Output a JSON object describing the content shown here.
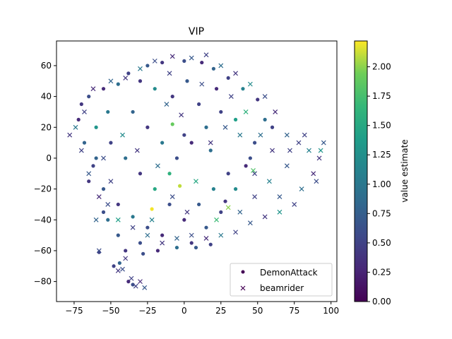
{
  "chart_data": {
    "type": "scatter",
    "title": "VIP",
    "xlabel": "",
    "ylabel": "",
    "xlim": [
      -87,
      104
    ],
    "ylim": [
      -93,
      76
    ],
    "xticks": [
      -75,
      -50,
      -25,
      0,
      25,
      50,
      75,
      100
    ],
    "yticks": [
      -80,
      -60,
      -40,
      -20,
      0,
      20,
      40,
      60
    ],
    "xtick_labels": [
      "−75",
      "−50",
      "−25",
      "0",
      "25",
      "50",
      "75",
      "100"
    ],
    "ytick_labels": [
      "−80",
      "−60",
      "−40",
      "−20",
      "0",
      "20",
      "40",
      "60"
    ],
    "colormap": "viridis",
    "colorbar": {
      "label": "value estimate",
      "min": 0.0,
      "max": 2.22,
      "ticks": [
        0.0,
        0.25,
        0.5,
        0.75,
        1.0,
        1.25,
        1.5,
        1.75,
        2.0
      ],
      "tick_labels": [
        "0.00",
        "0.25",
        "0.50",
        "0.75",
        "1.00",
        "1.25",
        "1.50",
        "1.75",
        "2.00"
      ]
    },
    "legend": {
      "placement": "lower-right",
      "entries": [
        {
          "label": "DemonAttack",
          "marker": "circle"
        },
        {
          "label": "beamrider",
          "marker": "x"
        }
      ]
    },
    "series": [
      {
        "name": "DemonAttack",
        "marker": "circle",
        "points": [
          [
            -70,
            35,
            0.4
          ],
          [
            -65,
            40,
            0.6
          ],
          [
            -55,
            45,
            0.3
          ],
          [
            -45,
            48,
            0.9
          ],
          [
            -38,
            55,
            0.5
          ],
          [
            -25,
            60,
            0.7
          ],
          [
            -15,
            62,
            0.4
          ],
          [
            0,
            63,
            0.6
          ],
          [
            12,
            62,
            0.3
          ],
          [
            20,
            58,
            0.8
          ],
          [
            30,
            52,
            0.5
          ],
          [
            40,
            45,
            1.1
          ],
          [
            50,
            38,
            0.4
          ],
          [
            55,
            25,
            0.9
          ],
          [
            48,
            10,
            0.6
          ],
          [
            42,
            -5,
            0.3
          ],
          [
            35,
            -20,
            1.2
          ],
          [
            25,
            -35,
            0.5
          ],
          [
            15,
            -45,
            0.7
          ],
          [
            5,
            -55,
            0.4
          ],
          [
            -5,
            -58,
            0.9
          ],
          [
            -15,
            -50,
            0.3
          ],
          [
            -25,
            -45,
            0.6
          ],
          [
            -35,
            -38,
            1.0
          ],
          [
            -45,
            -30,
            0.4
          ],
          [
            -55,
            -20,
            0.7
          ],
          [
            -62,
            -5,
            0.5
          ],
          [
            -68,
            10,
            0.8
          ],
          [
            -72,
            25,
            0.3
          ],
          [
            -60,
            20,
            1.3
          ],
          [
            -50,
            10,
            0.5
          ],
          [
            -40,
            0,
            0.9
          ],
          [
            -30,
            -10,
            0.4
          ],
          [
            -20,
            -20,
            1.5
          ],
          [
            -10,
            -30,
            0.6
          ],
          [
            0,
            -40,
            0.3
          ],
          [
            10,
            -30,
            0.7
          ],
          [
            20,
            -20,
            1.1
          ],
          [
            30,
            -10,
            0.5
          ],
          [
            -35,
            30,
            0.8
          ],
          [
            -25,
            20,
            0.4
          ],
          [
            -15,
            10,
            1.0
          ],
          [
            -5,
            0,
            0.6
          ],
          [
            5,
            10,
            0.3
          ],
          [
            15,
            20,
            0.9
          ],
          [
            25,
            30,
            0.5
          ],
          [
            35,
            25,
            1.4
          ],
          [
            -45,
            -50,
            0.7
          ],
          [
            -40,
            -60,
            0.4
          ],
          [
            -30,
            -55,
            0.6
          ],
          [
            -48,
            -70,
            0.5
          ],
          [
            -44,
            -68,
            0.8
          ],
          [
            -38,
            -80,
            0.3
          ],
          [
            -35,
            -82,
            0.6
          ],
          [
            -58,
            -61,
            0.5
          ],
          [
            -52,
            -40,
            0.9
          ],
          [
            -8,
            40,
            0.4
          ],
          [
            2,
            50,
            0.7
          ],
          [
            -20,
            45,
            1.2
          ],
          [
            10,
            35,
            0.5
          ],
          [
            22,
            45,
            0.3
          ],
          [
            -60,
            0,
            0.8
          ],
          [
            -65,
            -15,
            0.4
          ],
          [
            -55,
            -35,
            0.6
          ],
          [
            -10,
            -10,
            1.6
          ],
          [
            0,
            15,
            0.5
          ],
          [
            18,
            5,
            0.9
          ],
          [
            28,
            -28,
            0.4
          ],
          [
            -28,
            -62,
            0.6
          ],
          [
            -18,
            -60,
            0.3
          ],
          [
            8,
            -58,
            0.7
          ],
          [
            18,
            -56,
            0.5
          ],
          [
            -52,
            30,
            1.0
          ],
          [
            -30,
            50,
            0.4
          ],
          [
            45,
            0,
            0.6
          ],
          [
            60,
            20,
            0.5
          ],
          [
            -3,
            -18,
            2.1
          ],
          [
            -22,
            -33,
            2.2
          ],
          [
            -8,
            22,
            1.9
          ]
        ]
      },
      {
        "name": "beamrider",
        "marker": "x",
        "points": [
          [
            -68,
            30,
            0.5
          ],
          [
            -62,
            45,
            0.3
          ],
          [
            -50,
            50,
            0.8
          ],
          [
            -40,
            52,
            0.4
          ],
          [
            -30,
            58,
            1.0
          ],
          [
            -20,
            63,
            0.6
          ],
          [
            -8,
            66,
            0.3
          ],
          [
            5,
            65,
            0.7
          ],
          [
            15,
            67,
            0.5
          ],
          [
            25,
            60,
            0.9
          ],
          [
            35,
            55,
            0.4
          ],
          [
            45,
            48,
            1.2
          ],
          [
            55,
            40,
            0.6
          ],
          [
            62,
            30,
            0.3
          ],
          [
            70,
            15,
            0.8
          ],
          [
            78,
            10,
            0.5
          ],
          [
            85,
            5,
            1.1
          ],
          [
            92,
            0,
            0.4
          ],
          [
            95,
            10,
            0.7
          ],
          [
            88,
            -10,
            0.3
          ],
          [
            80,
            -20,
            0.9
          ],
          [
            75,
            -30,
            0.5
          ],
          [
            65,
            -35,
            1.3
          ],
          [
            55,
            -38,
            0.4
          ],
          [
            45,
            -42,
            0.7
          ],
          [
            35,
            -48,
            0.5
          ],
          [
            25,
            -50,
            1.0
          ],
          [
            15,
            -52,
            0.3
          ],
          [
            5,
            -50,
            0.6
          ],
          [
            -5,
            -52,
            0.8
          ],
          [
            -15,
            -55,
            0.4
          ],
          [
            -25,
            -50,
            0.9
          ],
          [
            -35,
            -45,
            0.5
          ],
          [
            -45,
            -40,
            1.4
          ],
          [
            -52,
            -30,
            0.6
          ],
          [
            -58,
            -25,
            0.3
          ],
          [
            -65,
            -10,
            0.7
          ],
          [
            -70,
            5,
            0.5
          ],
          [
            -74,
            20,
            1.0
          ],
          [
            -78,
            15,
            0.4
          ],
          [
            90,
            -15,
            0.6
          ],
          [
            82,
            15,
            0.5
          ],
          [
            93,
            5,
            1.3
          ],
          [
            70,
            -5,
            0.7
          ],
          [
            60,
            5,
            0.4
          ],
          [
            58,
            -15,
            1.1
          ],
          [
            48,
            -25,
            0.5
          ],
          [
            38,
            -35,
            0.8
          ],
          [
            -45,
            -73,
            0.4
          ],
          [
            -42,
            -72,
            0.6
          ],
          [
            -36,
            -78,
            0.5
          ],
          [
            -30,
            -80,
            0.3
          ],
          [
            -27,
            -84,
            0.7
          ],
          [
            -33,
            -83,
            0.5
          ],
          [
            -40,
            -65,
            0.4
          ],
          [
            -58,
            -60,
            0.6
          ],
          [
            -60,
            -40,
            0.8
          ],
          [
            -50,
            -15,
            0.5
          ],
          [
            -42,
            15,
            1.2
          ],
          [
            -32,
            5,
            0.4
          ],
          [
            -18,
            -5,
            0.9
          ],
          [
            -8,
            -25,
            0.6
          ],
          [
            8,
            -15,
            1.5
          ],
          [
            18,
            10,
            0.4
          ],
          [
            28,
            20,
            0.7
          ],
          [
            38,
            15,
            1.0
          ],
          [
            48,
            -10,
            0.5
          ],
          [
            -12,
            35,
            0.8
          ],
          [
            -2,
            28,
            0.4
          ],
          [
            12,
            48,
            0.6
          ],
          [
            32,
            40,
            0.5
          ],
          [
            42,
            30,
            1.6
          ],
          [
            65,
            -25,
            0.7
          ],
          [
            72,
            5,
            0.5
          ],
          [
            52,
            15,
            0.9
          ],
          [
            -55,
            0,
            0.6
          ],
          [
            -22,
            -40,
            1.1
          ],
          [
            2,
            -35,
            0.4
          ],
          [
            22,
            -40,
            1.7
          ],
          [
            -10,
            55,
            0.5
          ],
          [
            30,
            -32,
            2.0
          ],
          [
            47,
            -8,
            1.8
          ]
        ]
      }
    ]
  }
}
